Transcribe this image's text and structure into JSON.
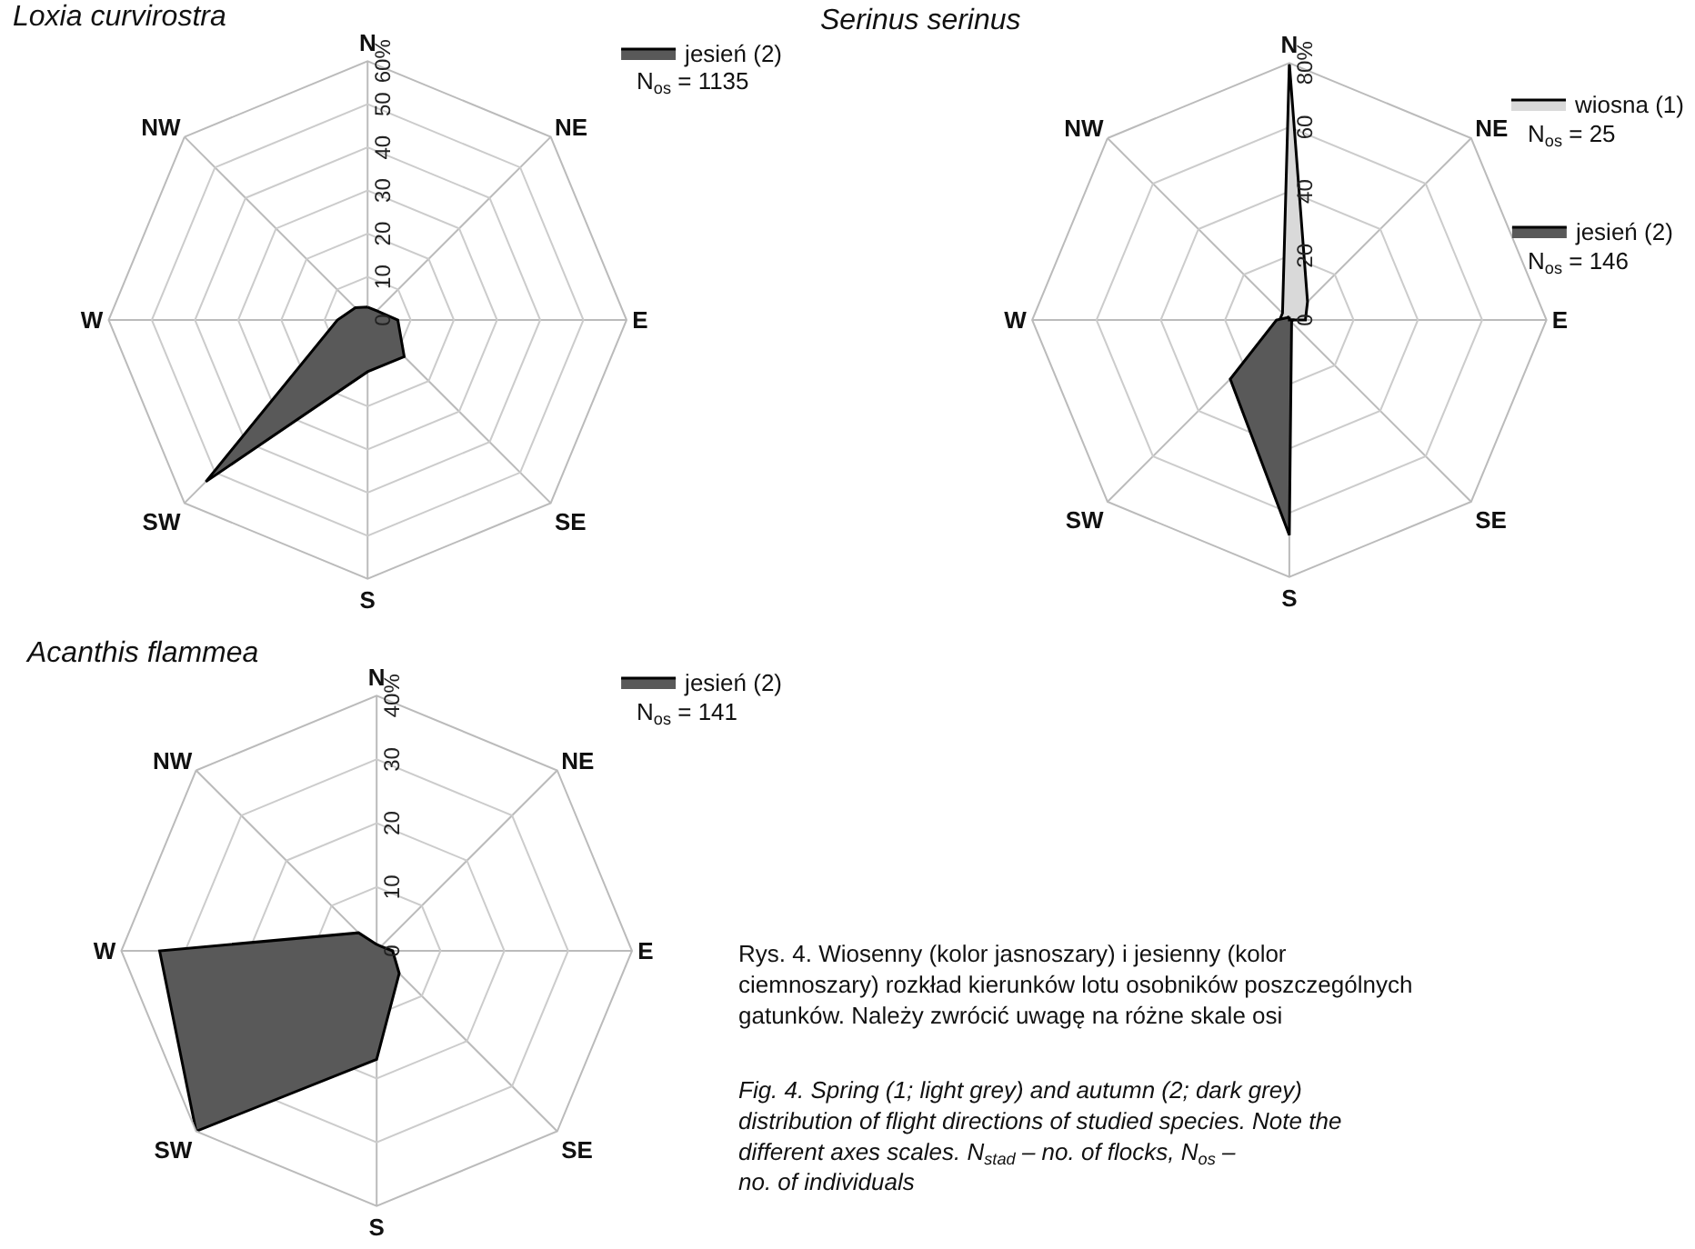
{
  "chart_data": [
    {
      "type": "radar",
      "title": "Loxia curvirostra",
      "categories": [
        "N",
        "NE",
        "E",
        "SE",
        "S",
        "SW",
        "W",
        "NW"
      ],
      "series": [
        {
          "name": "jesień (2)",
          "color": "#595959",
          "values": [
            3,
            3,
            7,
            12,
            12,
            53,
            7,
            4
          ]
        }
      ],
      "ylim": [
        0,
        60
      ],
      "yticks": [
        0,
        10,
        20,
        30,
        40,
        50,
        {
          "value": 60,
          "label": "60%"
        }
      ],
      "grid": true,
      "legend": "top right",
      "annotations": [
        "N$_{os}$ = 1135"
      ]
    },
    {
      "type": "radar",
      "title": "Serinus serinus",
      "categories": [
        "N",
        "NE",
        "E",
        "SE",
        "S",
        "SW",
        "W",
        "NW"
      ],
      "series": [
        {
          "name": "wiosna (1)",
          "color": "#d9d9d9",
          "values": [
            80,
            8,
            5,
            0,
            0,
            0,
            3,
            3
          ]
        },
        {
          "name": "jesień (2)",
          "color": "#595959",
          "values": [
            1,
            0,
            1,
            1,
            67,
            26,
            4,
            1
          ]
        }
      ],
      "ylim": [
        0,
        80
      ],
      "yticks": [
        0,
        20,
        40,
        60,
        {
          "value": 80,
          "label": "80%"
        }
      ],
      "grid": true,
      "legend": "top right",
      "annotations": [
        "N$_{os}$ = 25",
        "N$_{os}$ = 146"
      ]
    },
    {
      "type": "radar",
      "title": "Acanthis flammea",
      "categories": [
        "N",
        "NE",
        "E",
        "SE",
        "S",
        "SW",
        "W",
        "NW"
      ],
      "series": [
        {
          "name": "jesień (2)",
          "color": "#595959",
          "values": [
            1,
            1,
            2.5,
            5,
            17,
            40,
            34,
            4
          ]
        }
      ],
      "ylim": [
        0,
        40
      ],
      "yticks": [
        0,
        10,
        20,
        30,
        {
          "value": 40,
          "label": "40%"
        }
      ],
      "grid": true,
      "legend": "top right",
      "annotations": [
        "N$_{os}$ = 141",
        "Rys. 4. Wiosenny (kolor jasnoszary) i jesienny (kolor ciemnoszary) rozkład kierunków lotu osobników poszczególnych gatunków. Należy zwrócić uwagę na różne skale osi",
        "Fig. 4. Spring (1; light grey) and autumn (2; dark grey) distribution of flight directions of studied species. Note the different axes scales. N$_{stad}$ – no. of flocks, N$_{os}$ – no. of individuals"
      ]
    }
  ]
}
